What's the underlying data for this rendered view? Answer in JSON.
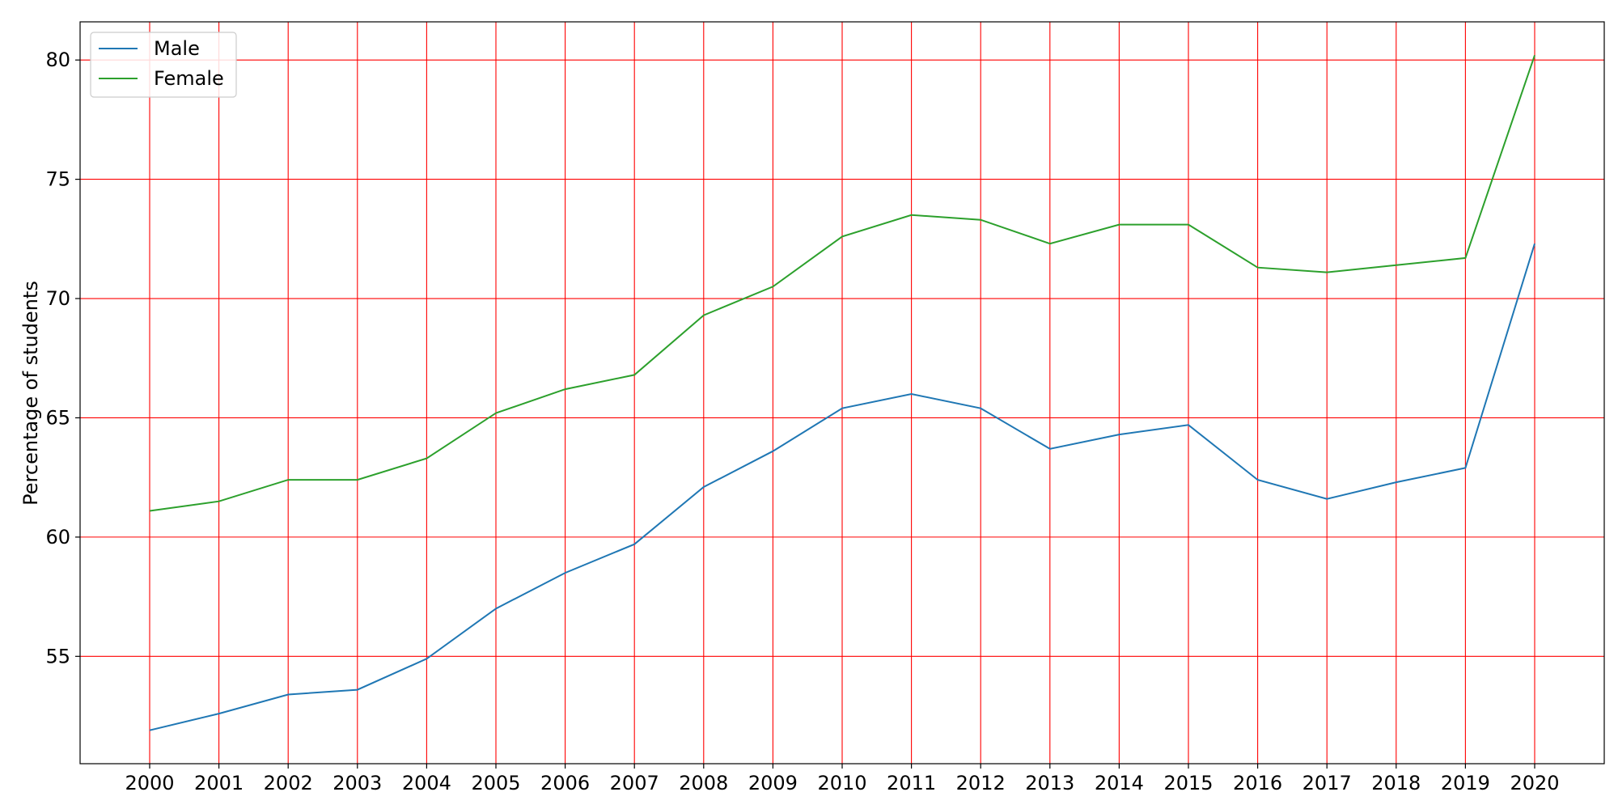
{
  "chart_data": {
    "type": "line",
    "title": "",
    "xlabel": "",
    "ylabel": "Percentage of students",
    "x": [
      "2000",
      "2001",
      "2002",
      "2003",
      "2004",
      "2005",
      "2006",
      "2007",
      "2008",
      "2009",
      "2010",
      "2011",
      "2012",
      "2013",
      "2014",
      "2015",
      "2016",
      "2017",
      "2018",
      "2019",
      "2020"
    ],
    "series": [
      {
        "name": "Male",
        "color": "#1f77b4",
        "values": [
          51.9,
          52.6,
          53.4,
          53.6,
          54.9,
          57.0,
          58.5,
          59.7,
          62.1,
          63.6,
          65.4,
          66.0,
          65.4,
          63.7,
          64.3,
          64.7,
          62.4,
          61.6,
          62.3,
          62.9,
          72.3
        ]
      },
      {
        "name": "Female",
        "color": "#2ca02c",
        "values": [
          61.1,
          61.5,
          62.4,
          62.4,
          63.3,
          65.2,
          66.2,
          66.8,
          69.3,
          70.5,
          72.6,
          73.5,
          73.3,
          72.3,
          73.1,
          73.1,
          71.3,
          71.1,
          71.4,
          71.7,
          80.2
        ]
      }
    ],
    "yticks": [
      55,
      60,
      65,
      70,
      75,
      80
    ],
    "ylim": [
      50.5,
      81.6
    ],
    "grid": true,
    "grid_color": "#ff0000",
    "legend_position": "upper-left"
  }
}
